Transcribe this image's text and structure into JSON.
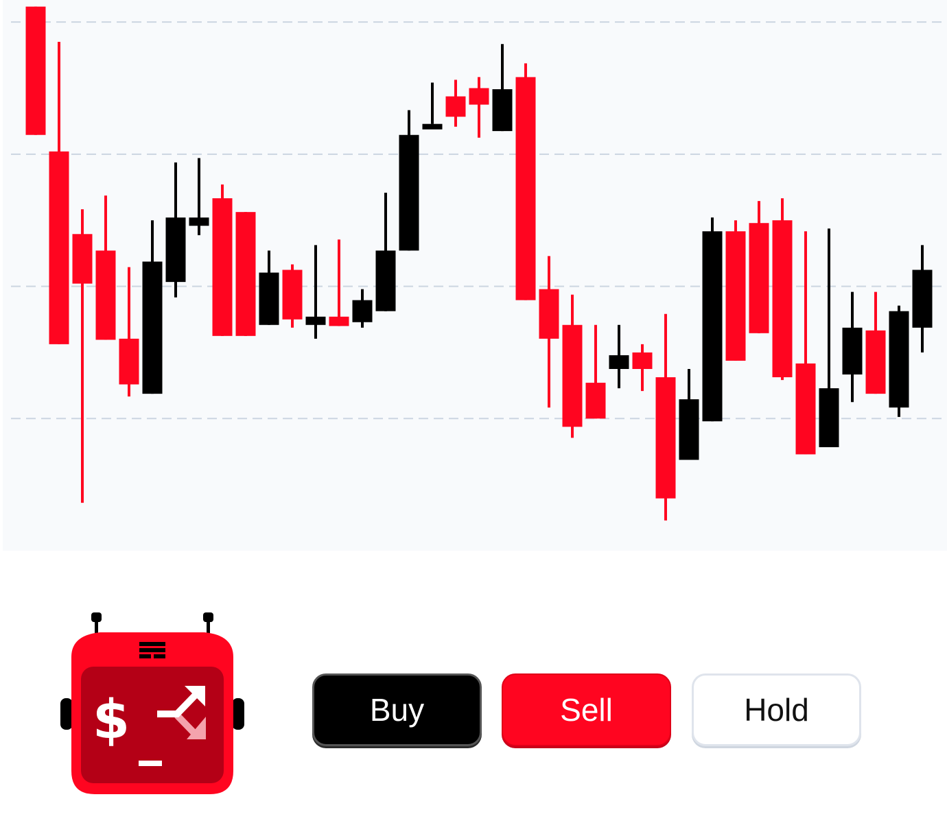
{
  "actions": {
    "buy_label": "Buy",
    "sell_label": "Sell",
    "hold_label": "Hold"
  },
  "logo": {
    "dollar_glyph": "$"
  },
  "colors": {
    "up": "#000000",
    "down": "#ff0520",
    "grid": "#cbd5e1",
    "panel_bg": "#f8fafc",
    "hold_border": "#dfe4ec"
  },
  "icons": [
    "bot-logo-icon",
    "dollar-icon",
    "trend-arrow-icon",
    "grille-icon"
  ],
  "chart_data": {
    "type": "candlestick",
    "grid": "horizontal-dashed",
    "ylim": [
      0,
      100
    ],
    "gridlines": [
      24,
      48,
      72,
      96
    ],
    "candles": [
      {
        "open": 98.8,
        "close": 75.5,
        "high": 98.8,
        "low": 75.5
      },
      {
        "open": 72.5,
        "close": 37.5,
        "high": 92.4,
        "low": 37.5
      },
      {
        "open": 57.5,
        "close": 48.5,
        "high": 62.0,
        "low": 8.7
      },
      {
        "open": 54.5,
        "close": 38.3,
        "high": 64.5,
        "low": 38.3
      },
      {
        "open": 38.5,
        "close": 30.2,
        "high": 51.5,
        "low": 28.0
      },
      {
        "open": 28.5,
        "close": 52.5,
        "high": 60.0,
        "low": 28.5
      },
      {
        "open": 48.8,
        "close": 60.5,
        "high": 70.5,
        "low": 46.0
      },
      {
        "open": 59.0,
        "close": 60.5,
        "high": 71.3,
        "low": 57.3
      },
      {
        "open": 64.0,
        "close": 39.0,
        "high": 66.5,
        "low": 39.0
      },
      {
        "open": 61.5,
        "close": 39.0,
        "high": 61.5,
        "low": 39.0
      },
      {
        "open": 41.0,
        "close": 50.5,
        "high": 54.5,
        "low": 41.0
      },
      {
        "open": 51.0,
        "close": 42.0,
        "high": 52.0,
        "low": 40.5
      },
      {
        "open": 41.0,
        "close": 42.5,
        "high": 55.5,
        "low": 38.5
      },
      {
        "open": 42.5,
        "close": 40.8,
        "high": 56.5,
        "low": 40.8
      },
      {
        "open": 41.5,
        "close": 45.5,
        "high": 47.5,
        "low": 40.5
      },
      {
        "open": 43.5,
        "close": 54.5,
        "high": 65.0,
        "low": 43.5
      },
      {
        "open": 54.5,
        "close": 75.5,
        "high": 80.0,
        "low": 54.5
      },
      {
        "open": 77.5,
        "close": 77.5,
        "high": 85.0,
        "low": 77.5
      },
      {
        "open": 82.5,
        "close": 78.8,
        "high": 85.5,
        "low": 77.0
      },
      {
        "open": 84.0,
        "close": 81.0,
        "high": 86.0,
        "low": 75.0
      },
      {
        "open": 76.2,
        "close": 83.8,
        "high": 92.0,
        "low": 76.2
      },
      {
        "open": 86.0,
        "close": 45.5,
        "high": 88.5,
        "low": 45.5
      },
      {
        "open": 47.5,
        "close": 38.5,
        "high": 53.5,
        "low": 26.0
      },
      {
        "open": 41.0,
        "close": 22.5,
        "high": 46.5,
        "low": 20.5
      },
      {
        "open": 30.5,
        "close": 24.0,
        "high": 41.0,
        "low": 24.0
      },
      {
        "open": 33.0,
        "close": 35.5,
        "high": 41.0,
        "low": 29.5
      },
      {
        "open": 36.0,
        "close": 33.0,
        "high": 37.5,
        "low": 29.0
      },
      {
        "open": 31.5,
        "close": 9.5,
        "high": 43.0,
        "low": 5.5
      },
      {
        "open": 16.5,
        "close": 27.5,
        "high": 33.0,
        "low": 16.5
      },
      {
        "open": 23.5,
        "close": 58.0,
        "high": 60.5,
        "low": 23.5
      },
      {
        "open": 58.0,
        "close": 34.5,
        "high": 60.0,
        "low": 34.5
      },
      {
        "open": 59.5,
        "close": 39.5,
        "high": 63.5,
        "low": 39.5
      },
      {
        "open": 60.0,
        "close": 31.5,
        "high": 64.0,
        "low": 31.0
      },
      {
        "open": 34.0,
        "close": 17.5,
        "high": 58.0,
        "low": 17.5
      },
      {
        "open": 18.8,
        "close": 29.5,
        "high": 58.5,
        "low": 18.8
      },
      {
        "open": 32.0,
        "close": 40.5,
        "high": 47.0,
        "low": 27.0
      },
      {
        "open": 40.0,
        "close": 28.5,
        "high": 47.0,
        "low": 28.5
      },
      {
        "open": 26.0,
        "close": 43.5,
        "high": 44.5,
        "low": 24.3
      },
      {
        "open": 40.5,
        "close": 51.0,
        "high": 55.5,
        "low": 36.0
      }
    ]
  }
}
